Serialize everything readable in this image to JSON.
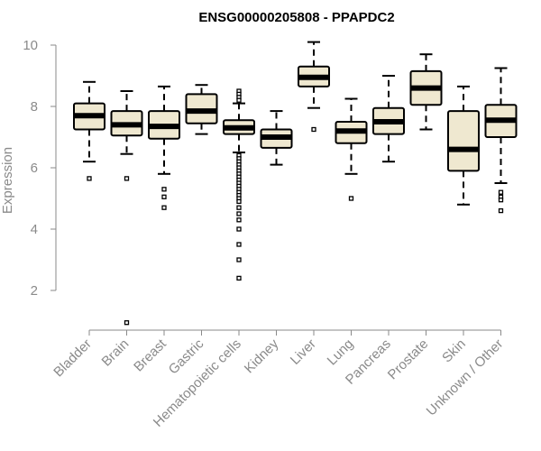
{
  "chart_data": {
    "type": "boxplot",
    "title": "ENSG00000205808 - PPAPDC2",
    "xlabel": "",
    "ylabel": "Expression",
    "ylim": [
      0.8,
      10.3
    ],
    "yticks": [
      2,
      4,
      6,
      8,
      10
    ],
    "categories": [
      "Bladder",
      "Brain",
      "Breast",
      "Gastric",
      "Hematopoietic cells",
      "Kidney",
      "Liver",
      "Lung",
      "Pancreas",
      "Prostate",
      "Skin",
      "Unknown / Other"
    ],
    "series": [
      {
        "boxes": [
          {
            "whisker_low": 6.2,
            "q1": 7.25,
            "median": 7.7,
            "q3": 8.1,
            "whisker_high": 8.8,
            "outliers": [
              5.65
            ]
          },
          {
            "whisker_low": 6.45,
            "q1": 7.05,
            "median": 7.4,
            "q3": 7.85,
            "whisker_high": 8.5,
            "outliers": [
              5.65,
              0.95
            ]
          },
          {
            "whisker_low": 5.8,
            "q1": 6.95,
            "median": 7.35,
            "q3": 7.85,
            "whisker_high": 8.65,
            "outliers": [
              5.3,
              5.05,
              4.7
            ]
          },
          {
            "whisker_low": 7.1,
            "q1": 7.45,
            "median": 7.85,
            "q3": 8.4,
            "whisker_high": 8.7,
            "outliers": []
          },
          {
            "whisker_low": 6.5,
            "q1": 7.1,
            "median": 7.3,
            "q3": 7.55,
            "whisker_high": 8.1,
            "outliers": [
              8.5,
              8.4,
              8.3,
              8.2,
              6.4,
              6.3,
              6.2,
              6.1,
              6.0,
              5.9,
              5.8,
              5.7,
              5.6,
              5.5,
              5.4,
              5.3,
              5.2,
              5.1,
              5.0,
              4.9,
              4.7,
              4.5,
              4.3,
              4.0,
              3.5,
              3.0,
              2.4
            ]
          },
          {
            "whisker_low": 6.1,
            "q1": 6.65,
            "median": 7.0,
            "q3": 7.25,
            "whisker_high": 7.85,
            "outliers": []
          },
          {
            "whisker_low": 7.95,
            "q1": 8.65,
            "median": 8.95,
            "q3": 9.3,
            "whisker_high": 10.1,
            "outliers": [
              7.25
            ]
          },
          {
            "whisker_low": 5.8,
            "q1": 6.8,
            "median": 7.2,
            "q3": 7.5,
            "whisker_high": 8.25,
            "outliers": [
              5.0
            ]
          },
          {
            "whisker_low": 6.2,
            "q1": 7.1,
            "median": 7.5,
            "q3": 7.95,
            "whisker_high": 9.0,
            "outliers": []
          },
          {
            "whisker_low": 7.25,
            "q1": 8.05,
            "median": 8.6,
            "q3": 9.15,
            "whisker_high": 9.7,
            "outliers": []
          },
          {
            "whisker_low": 4.8,
            "q1": 5.9,
            "median": 6.6,
            "q3": 7.85,
            "whisker_high": 8.65,
            "outliers": []
          },
          {
            "whisker_low": 5.5,
            "q1": 7.0,
            "median": 7.55,
            "q3": 8.05,
            "whisker_high": 9.25,
            "outliers": [
              5.2,
              5.05,
              4.95,
              4.6
            ]
          }
        ]
      }
    ],
    "colors": {
      "box_fill": "#efe8d0",
      "box_stroke": "#000000",
      "median": "#000000",
      "axis": "#8a8a8a",
      "title": "#000000"
    },
    "grid": false,
    "legend": "none"
  }
}
